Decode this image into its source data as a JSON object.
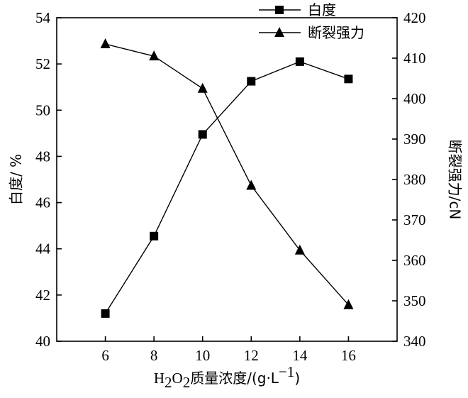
{
  "chart_data": {
    "type": "line",
    "x": [
      6,
      8,
      10,
      12,
      14,
      16
    ],
    "xlabel": {
      "main": "H",
      "sub1": "2",
      "mid": "O",
      "sub2": "2",
      "rest": "质量浓度/(g·L",
      "sup": "−1",
      "end": ")"
    },
    "xlim": [
      4,
      18
    ],
    "xticks": [
      "6",
      "8",
      "10",
      "12",
      "14",
      "16"
    ],
    "y_left": {
      "label": "白度/ %",
      "lim": [
        40,
        54
      ],
      "ticks": [
        "40",
        "42",
        "44",
        "46",
        "48",
        "50",
        "52",
        "54"
      ]
    },
    "y_right": {
      "label": "断裂强力/cN",
      "lim": [
        340,
        420
      ],
      "ticks": [
        "340",
        "350",
        "360",
        "370",
        "380",
        "390",
        "400",
        "410",
        "420"
      ]
    },
    "series": [
      {
        "name": "白度",
        "axis": "left",
        "marker": "square",
        "values": [
          41.2,
          44.55,
          48.95,
          51.25,
          52.1,
          51.35
        ]
      },
      {
        "name": "断裂强力",
        "axis": "right",
        "marker": "triangle",
        "values": [
          413.5,
          410.5,
          402.5,
          378.5,
          362.5,
          349
        ]
      }
    ],
    "legend": {
      "position": "top-right",
      "entries": [
        "白度",
        "断裂强力"
      ]
    },
    "grid": false,
    "colors": {
      "line": "#000000",
      "marker": "#000000"
    }
  }
}
